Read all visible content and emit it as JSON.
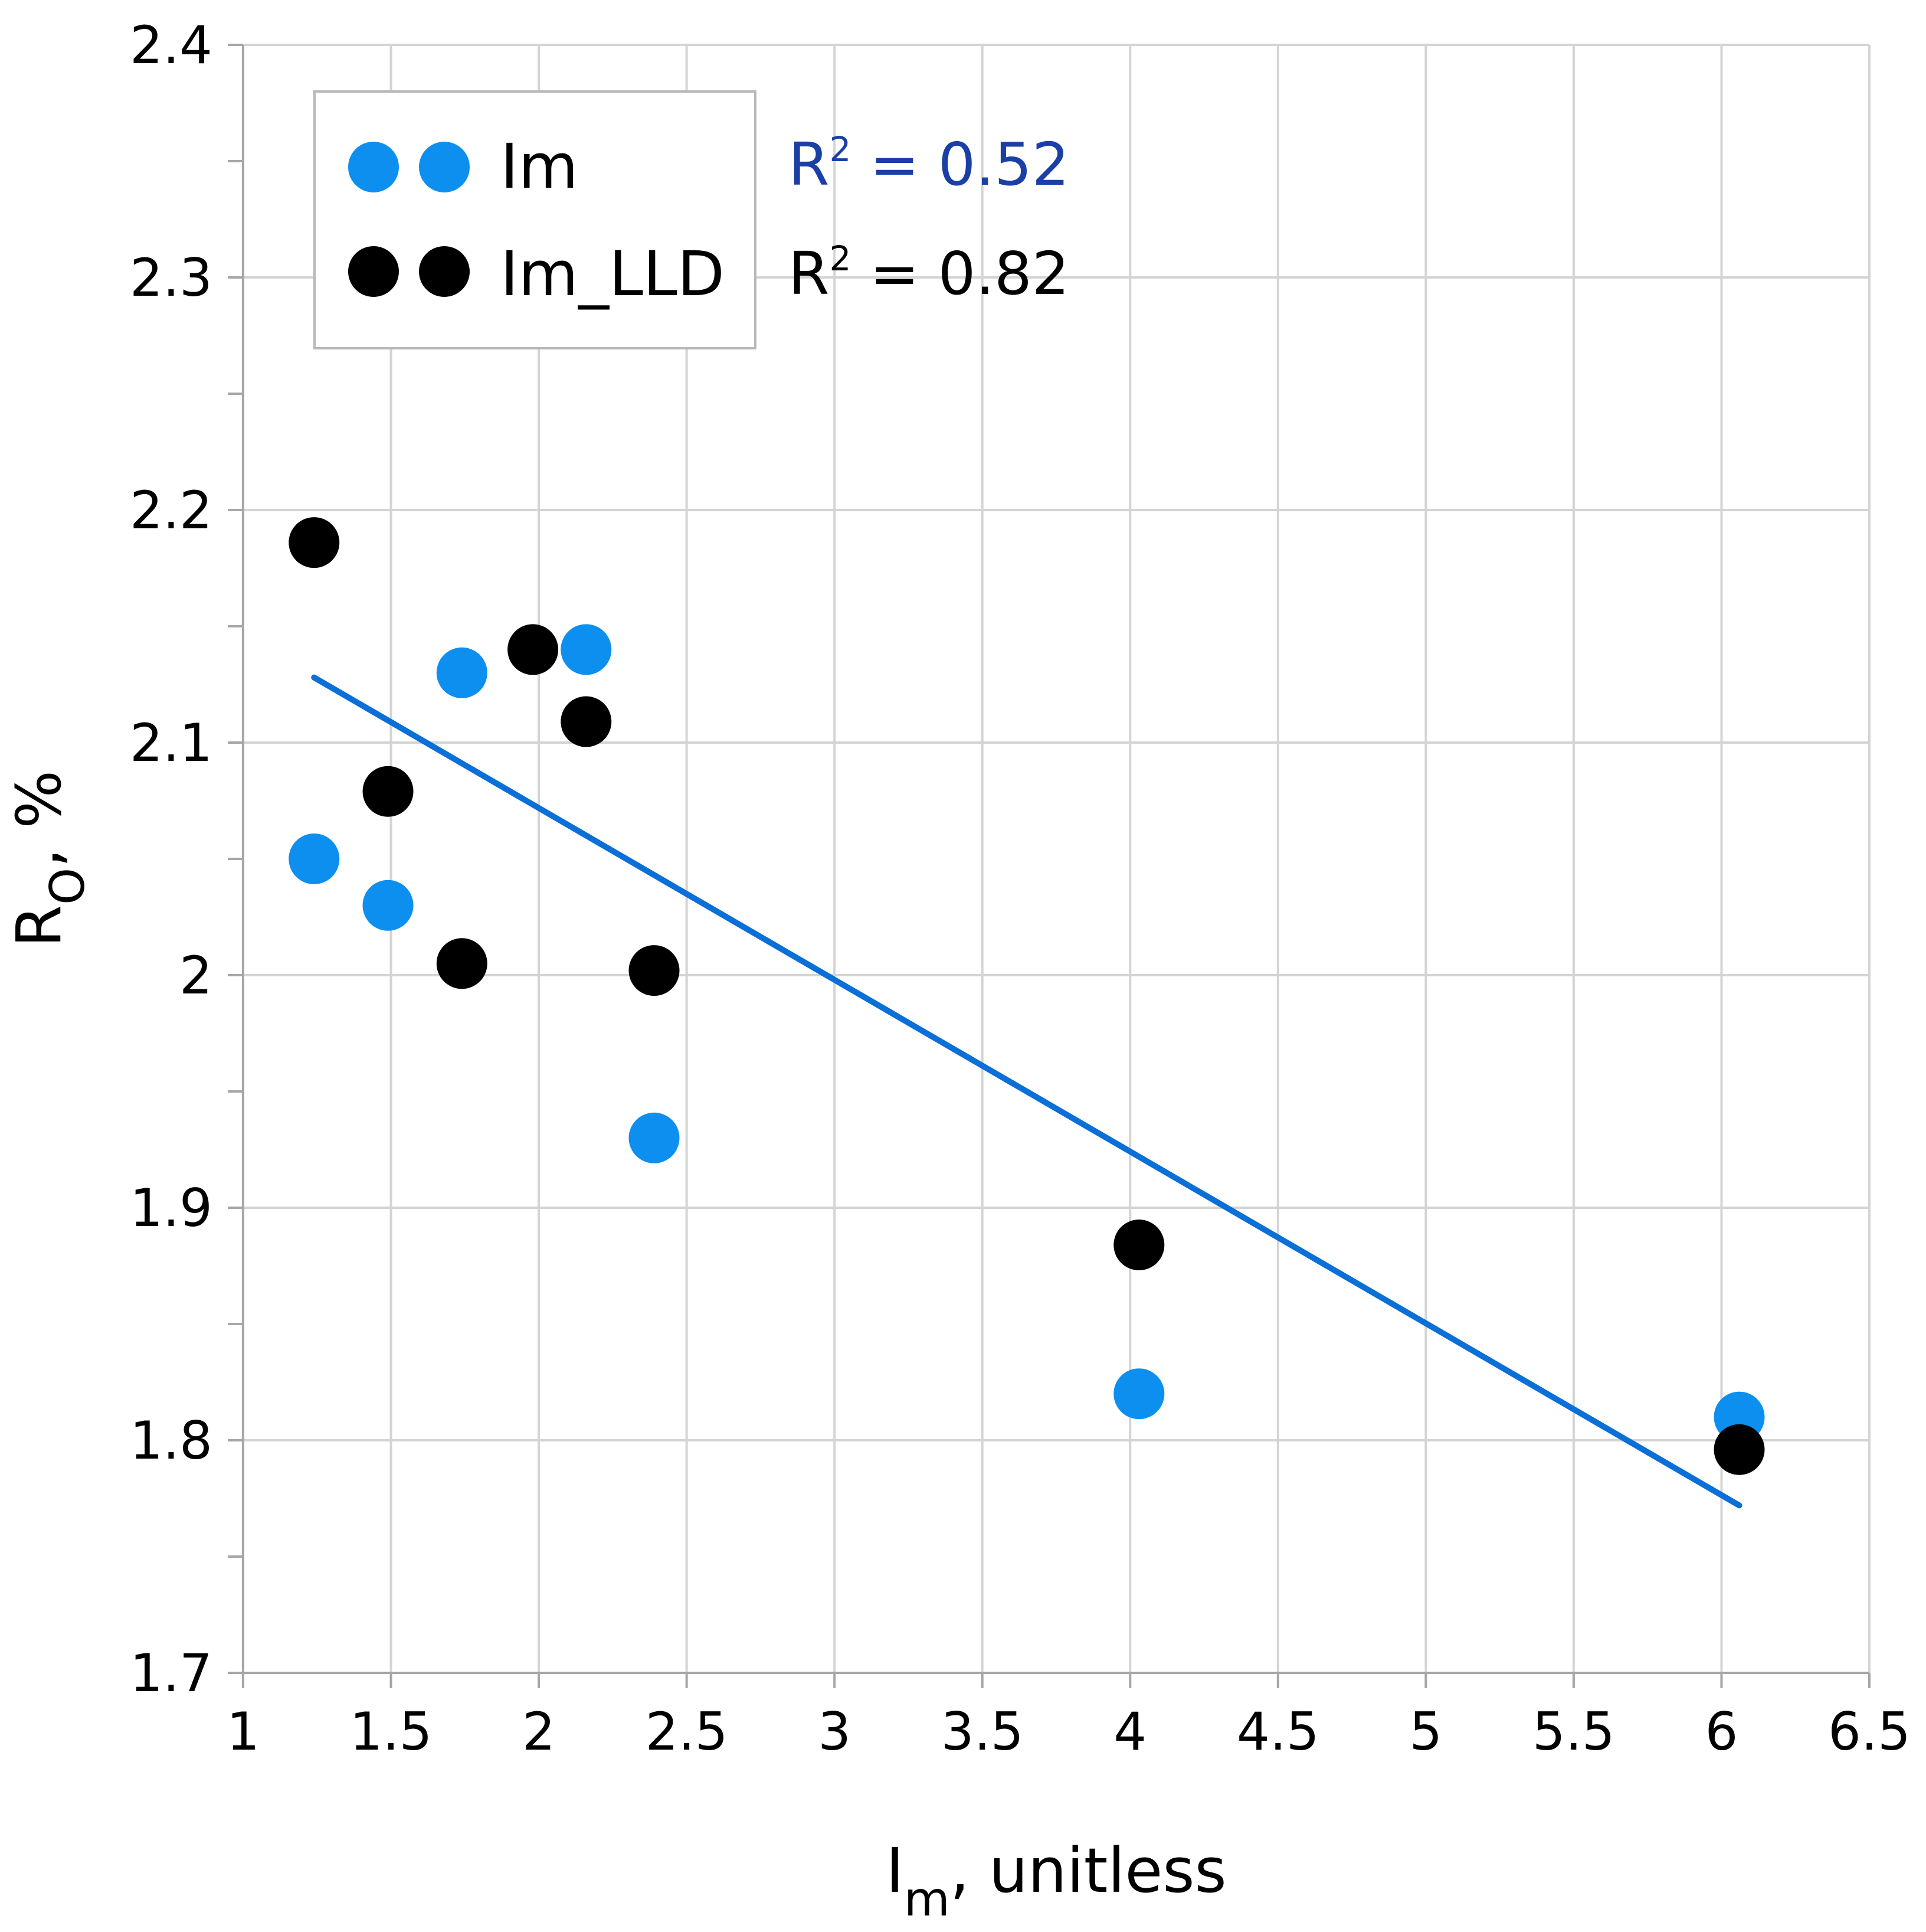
{
  "chart_data": {
    "type": "scatter",
    "xlabel": "I",
    "xlabel_subscript": "m",
    "xlabel_suffix": ", unitless",
    "ylabel": "R",
    "ylabel_subscript": "O",
    "ylabel_suffix": ", %",
    "xlim": [
      1,
      6.5
    ],
    "ylim": [
      1.7,
      2.4
    ],
    "x_ticks": [
      1,
      1.5,
      2,
      2.5,
      3,
      3.5,
      4,
      4.5,
      5,
      5.5,
      6,
      6.5
    ],
    "x_tick_labels": [
      "1",
      "1.5",
      "2",
      "2.5",
      "3",
      "3.5",
      "4",
      "4.5",
      "5",
      "5.5",
      "6",
      "6.5"
    ],
    "y_ticks": [
      1.7,
      1.8,
      1.9,
      2.0,
      2.1,
      2.2,
      2.3,
      2.4
    ],
    "y_tick_labels": [
      "1.7",
      "1.8",
      "1.9",
      "2",
      "2.1",
      "2.2",
      "2.3",
      "2.4"
    ],
    "y_minor_ticks": [
      1.75,
      1.85,
      1.95,
      2.05,
      2.15,
      2.25,
      2.35
    ],
    "grid": true,
    "legend_position": "top-left",
    "series": [
      {
        "name": "Im",
        "color": "#0d8ff0",
        "x": [
          1.24,
          1.49,
          1.74,
          2.16,
          2.39,
          4.03,
          6.06
        ],
        "y": [
          2.05,
          2.03,
          2.13,
          2.14,
          1.93,
          1.82,
          1.81
        ]
      },
      {
        "name": "Im_LLD",
        "color": "#000000",
        "x": [
          1.24,
          1.49,
          1.74,
          1.98,
          2.16,
          2.39,
          4.03,
          6.06
        ],
        "y": [
          2.186,
          2.079,
          2.005,
          2.14,
          2.109,
          2.002,
          1.884,
          1.796
        ]
      }
    ],
    "trendline": {
      "color": "#0a6fd6",
      "x": [
        1.24,
        6.06
      ],
      "y": [
        2.128,
        1.772
      ]
    },
    "annotations": {
      "r2_im": {
        "prefix": "R",
        "superscript": "2",
        "suffix": " = 0.52",
        "color": "#1a3fa6"
      },
      "r2_lld": {
        "prefix": "R",
        "superscript": "2",
        "suffix": " = 0.82",
        "color": "#000000"
      }
    }
  }
}
